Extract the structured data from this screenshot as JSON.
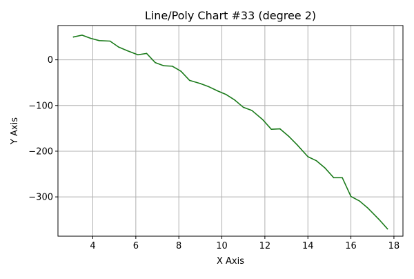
{
  "chart_data": {
    "type": "line",
    "title": "Line/Poly Chart #33 (degree 2)",
    "xlabel": "X Axis",
    "ylabel": "Y Axis",
    "xlim": [
      2.38,
      18.42
    ],
    "ylim": [
      -386.0,
      75.0
    ],
    "xticks": [
      4,
      6,
      8,
      10,
      12,
      14,
      16,
      18
    ],
    "xtick_labels": [
      "4",
      "6",
      "8",
      "10",
      "12",
      "14",
      "16",
      "18"
    ],
    "yticks": [
      0,
      -100,
      -200,
      -300
    ],
    "ytick_labels": [
      "0",
      "−100",
      "−200",
      "−300"
    ],
    "grid": true,
    "series": [
      {
        "color": "#1a7a1a",
        "x": [
          3.1,
          3.5,
          3.9,
          4.3,
          4.8,
          5.2,
          5.6,
          6.1,
          6.5,
          6.9,
          7.3,
          7.7,
          8.1,
          8.5,
          9.0,
          9.4,
          9.8,
          10.2,
          10.6,
          11.0,
          11.4,
          11.9,
          12.3,
          12.7,
          13.1,
          13.5,
          14.0,
          14.4,
          14.8,
          15.2,
          15.6,
          16.0,
          16.4,
          16.8,
          17.3,
          17.7
        ],
        "y": [
          50,
          54,
          47,
          42,
          41,
          28,
          20,
          11,
          14,
          -6,
          -13,
          -14,
          -25,
          -45,
          -52,
          -59,
          -68,
          -76,
          -88,
          -104,
          -111,
          -131,
          -152,
          -151,
          -167,
          -186,
          -212,
          -221,
          -237,
          -258,
          -258,
          -299,
          -309,
          -325,
          -349,
          -370
        ]
      }
    ]
  }
}
